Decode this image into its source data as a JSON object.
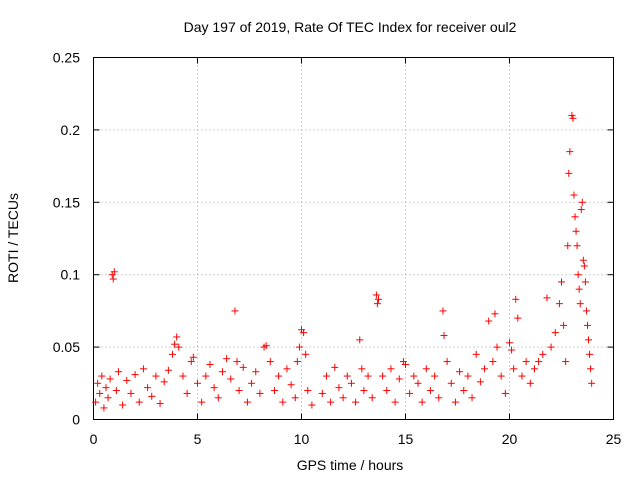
{
  "chart_data": {
    "type": "scatter",
    "title": "Day 197 of 2019, Rate Of TEC Index for receiver oul2",
    "xlabel": "GPS time / hours",
    "ylabel": "ROTI / TECUs",
    "xlim": [
      0,
      25
    ],
    "ylim": [
      0,
      0.25
    ],
    "xticks": [
      0,
      5,
      10,
      15,
      20,
      25
    ],
    "yticks": [
      0,
      0.05,
      0.1,
      0.15,
      0.2,
      0.25
    ],
    "xtick_labels": [
      "0",
      "5",
      "10",
      "15",
      "20",
      "25"
    ],
    "ytick_labels": [
      "0",
      "0.05",
      "0.1",
      "0.15",
      "0.2",
      "0.25"
    ],
    "grid": true,
    "marker": "+",
    "marker_color": "#ff0000",
    "series": [
      {
        "name": "ROTI",
        "points": [
          [
            0.1,
            0.012
          ],
          [
            0.2,
            0.025
          ],
          [
            0.3,
            0.018
          ],
          [
            0.4,
            0.03
          ],
          [
            0.5,
            0.008
          ],
          [
            0.6,
            0.022
          ],
          [
            0.7,
            0.015
          ],
          [
            0.8,
            0.028
          ],
          [
            0.9,
            0.1
          ],
          [
            0.95,
            0.097
          ],
          [
            1.0,
            0.102
          ],
          [
            1.1,
            0.02
          ],
          [
            1.2,
            0.033
          ],
          [
            1.4,
            0.01
          ],
          [
            1.6,
            0.027
          ],
          [
            1.8,
            0.018
          ],
          [
            2.0,
            0.031
          ],
          [
            2.2,
            0.012
          ],
          [
            2.4,
            0.035
          ],
          [
            2.6,
            0.022
          ],
          [
            2.8,
            0.016
          ],
          [
            3.0,
            0.03
          ],
          [
            3.2,
            0.011
          ],
          [
            3.4,
            0.026
          ],
          [
            3.6,
            0.034
          ],
          [
            3.8,
            0.045
          ],
          [
            3.9,
            0.052
          ],
          [
            4.0,
            0.057
          ],
          [
            4.1,
            0.05
          ],
          [
            4.3,
            0.03
          ],
          [
            4.5,
            0.018
          ],
          [
            4.7,
            0.04
          ],
          [
            4.8,
            0.043
          ],
          [
            5.0,
            0.025
          ],
          [
            5.2,
            0.012
          ],
          [
            5.4,
            0.03
          ],
          [
            5.6,
            0.038
          ],
          [
            5.8,
            0.022
          ],
          [
            6.0,
            0.015
          ],
          [
            6.2,
            0.033
          ],
          [
            6.4,
            0.042
          ],
          [
            6.6,
            0.028
          ],
          [
            6.8,
            0.075
          ],
          [
            6.9,
            0.04
          ],
          [
            7.0,
            0.02
          ],
          [
            7.2,
            0.036
          ],
          [
            7.4,
            0.012
          ],
          [
            7.6,
            0.025
          ],
          [
            7.8,
            0.033
          ],
          [
            8.0,
            0.018
          ],
          [
            8.2,
            0.05
          ],
          [
            8.3,
            0.051
          ],
          [
            8.5,
            0.04
          ],
          [
            8.7,
            0.02
          ],
          [
            8.9,
            0.03
          ],
          [
            9.1,
            0.012
          ],
          [
            9.3,
            0.035
          ],
          [
            9.5,
            0.024
          ],
          [
            9.7,
            0.015
          ],
          [
            9.8,
            0.04
          ],
          [
            9.9,
            0.05
          ],
          [
            10.0,
            0.062
          ],
          [
            10.1,
            0.06
          ],
          [
            10.2,
            0.045
          ],
          [
            10.3,
            0.02
          ],
          [
            10.5,
            0.01
          ],
          [
            11.0,
            0.018
          ],
          [
            11.2,
            0.03
          ],
          [
            11.4,
            0.012
          ],
          [
            11.6,
            0.036
          ],
          [
            11.8,
            0.022
          ],
          [
            12.0,
            0.015
          ],
          [
            12.2,
            0.03
          ],
          [
            12.4,
            0.025
          ],
          [
            12.6,
            0.012
          ],
          [
            12.8,
            0.055
          ],
          [
            12.9,
            0.035
          ],
          [
            13.0,
            0.02
          ],
          [
            13.2,
            0.03
          ],
          [
            13.4,
            0.015
          ],
          [
            13.6,
            0.086
          ],
          [
            13.65,
            0.08
          ],
          [
            13.7,
            0.083
          ],
          [
            13.9,
            0.03
          ],
          [
            14.1,
            0.02
          ],
          [
            14.3,
            0.035
          ],
          [
            14.5,
            0.012
          ],
          [
            14.7,
            0.028
          ],
          [
            14.9,
            0.04
          ],
          [
            15.0,
            0.038
          ],
          [
            15.2,
            0.018
          ],
          [
            15.4,
            0.03
          ],
          [
            15.6,
            0.025
          ],
          [
            15.8,
            0.012
          ],
          [
            16.0,
            0.035
          ],
          [
            16.2,
            0.02
          ],
          [
            16.4,
            0.03
          ],
          [
            16.6,
            0.015
          ],
          [
            16.8,
            0.075
          ],
          [
            16.85,
            0.058
          ],
          [
            17.0,
            0.04
          ],
          [
            17.2,
            0.025
          ],
          [
            17.4,
            0.012
          ],
          [
            17.6,
            0.033
          ],
          [
            17.8,
            0.02
          ],
          [
            18.0,
            0.03
          ],
          [
            18.2,
            0.015
          ],
          [
            18.4,
            0.045
          ],
          [
            18.6,
            0.026
          ],
          [
            18.8,
            0.035
          ],
          [
            19.0,
            0.068
          ],
          [
            19.2,
            0.04
          ],
          [
            19.3,
            0.073
          ],
          [
            19.4,
            0.05
          ],
          [
            19.6,
            0.03
          ],
          [
            19.8,
            0.018
          ],
          [
            20.0,
            0.053
          ],
          [
            20.1,
            0.048
          ],
          [
            20.2,
            0.035
          ],
          [
            20.3,
            0.083
          ],
          [
            20.4,
            0.07
          ],
          [
            20.6,
            0.03
          ],
          [
            20.8,
            0.04
          ],
          [
            21.0,
            0.025
          ],
          [
            21.2,
            0.035
          ],
          [
            21.4,
            0.04
          ],
          [
            21.6,
            0.045
          ],
          [
            21.8,
            0.084
          ],
          [
            22.0,
            0.05
          ],
          [
            22.2,
            0.06
          ],
          [
            22.4,
            0.08
          ],
          [
            22.5,
            0.095
          ],
          [
            22.6,
            0.065
          ],
          [
            22.7,
            0.04
          ],
          [
            22.8,
            0.12
          ],
          [
            22.85,
            0.17
          ],
          [
            22.9,
            0.185
          ],
          [
            23.0,
            0.21
          ],
          [
            23.05,
            0.208
          ],
          [
            23.1,
            0.155
          ],
          [
            23.15,
            0.14
          ],
          [
            23.2,
            0.13
          ],
          [
            23.25,
            0.12
          ],
          [
            23.3,
            0.1
          ],
          [
            23.35,
            0.09
          ],
          [
            23.4,
            0.08
          ],
          [
            23.45,
            0.145
          ],
          [
            23.5,
            0.15
          ],
          [
            23.55,
            0.11
          ],
          [
            23.6,
            0.106
          ],
          [
            23.65,
            0.095
          ],
          [
            23.7,
            0.075
          ],
          [
            23.75,
            0.065
          ],
          [
            23.8,
            0.055
          ],
          [
            23.85,
            0.045
          ],
          [
            23.9,
            0.035
          ],
          [
            23.95,
            0.025
          ]
        ]
      }
    ]
  }
}
